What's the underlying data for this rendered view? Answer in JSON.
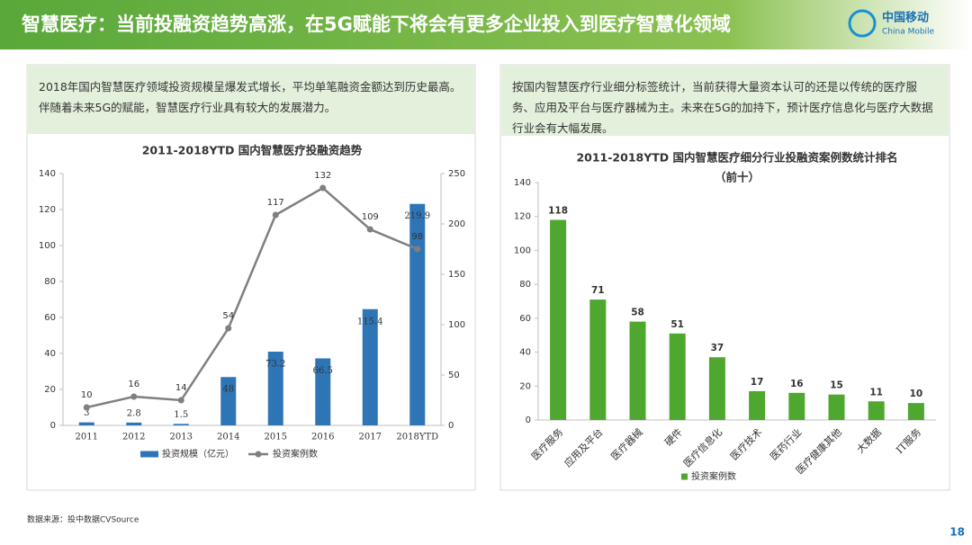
{
  "header": {
    "title": "智慧医疗：当前投融资趋势高涨，在5G赋能下将会有更多企业投入到医疗智慧化领域",
    "logo_cn": "中国移动",
    "logo_en": "China Mobile"
  },
  "panels": [
    {
      "note": "2018年国内智慧医疗领域投资规模呈爆发式增长，平均单笔融资金额达到历史最高。伴随着未来5G的赋能，智慧医疗行业具有较大的发展潜力。"
    },
    {
      "note": "按国内智慧医疗行业细分标签统计，当前获得大量资本认可的还是以传统的医疗服务、应用及平台与医疗器械为主。未来在5G的加持下，预计医疗信息化与医疗大数据行业会有大幅发展。"
    }
  ],
  "chart_data": [
    {
      "type": "combo",
      "title": "2011-2018YTD 国内智慧医疗投融资趋势",
      "categories": [
        "2011",
        "2012",
        "2013",
        "2014",
        "2015",
        "2016",
        "2017",
        "2018YTD"
      ],
      "series": [
        {
          "name": "投资规模（亿元）",
          "type": "bar",
          "axis": "y2",
          "color": "#2e75b6",
          "values": [
            3,
            2.8,
            1.5,
            48,
            73.2,
            66.5,
            115.4,
            219.9
          ]
        },
        {
          "name": "投资案例数",
          "type": "line",
          "color": "#7f7f7f",
          "values": [
            10,
            16,
            14,
            54,
            117,
            132,
            109,
            98
          ]
        }
      ],
      "ylim": [
        0,
        140
      ],
      "yticks": [
        0,
        20,
        40,
        60,
        80,
        100,
        120,
        140
      ],
      "y2lim": [
        0,
        250
      ],
      "y2ticks": [
        0,
        50,
        100,
        150,
        200,
        250
      ],
      "grid": false,
      "legend": "bottom",
      "show_values": true
    },
    {
      "type": "bar",
      "title": "2011-2018YTD 国内智慧医疗细分行业投融资案例数统计排名",
      "subtitle": "（前十）",
      "categories": [
        "医疗服务",
        "应用及平台",
        "医疗器械",
        "硬件",
        "医疗信息化",
        "医疗技术",
        "医药行业",
        "医疗健康其他",
        "大数据",
        "IT服务"
      ],
      "series": [
        {
          "name": "投资案例数",
          "color": "#4ea72e",
          "values": [
            118,
            71,
            58,
            51,
            37,
            17,
            16,
            15,
            11,
            10
          ]
        }
      ],
      "ylim": [
        0,
        140
      ],
      "yticks": [
        0,
        20,
        40,
        60,
        80,
        100,
        120,
        140
      ],
      "grid": false,
      "legend": "bottom",
      "show_values": true
    }
  ],
  "source": "数据来源：投中数据CVSource",
  "page_number": "18"
}
